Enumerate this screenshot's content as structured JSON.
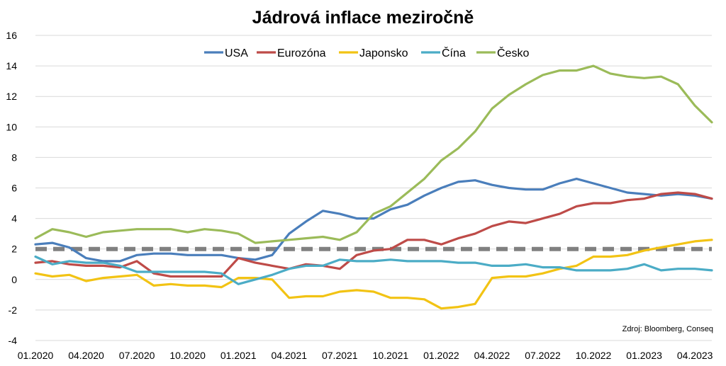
{
  "chart_data": {
    "type": "line",
    "title": "Jádrová inflace meziročně",
    "source": "Zdroj: Bloomberg, Conseq",
    "ylim": [
      -4,
      16
    ],
    "yticks": [
      -4,
      -2,
      0,
      2,
      4,
      6,
      8,
      10,
      12,
      14,
      16
    ],
    "grid": true,
    "legend_position": "top",
    "x_tick_labels": [
      "01.2020",
      "04.2020",
      "07.2020",
      "10.2020",
      "01.2021",
      "04.2021",
      "07.2021",
      "10.2021",
      "01.2022",
      "04.2022",
      "07.2022",
      "10.2022",
      "01.2023",
      "04.2023"
    ],
    "reference_line": {
      "value": 2,
      "style": "dashed",
      "color": "#808080"
    },
    "x": [
      "01.2020",
      "02.2020",
      "03.2020",
      "04.2020",
      "05.2020",
      "06.2020",
      "07.2020",
      "08.2020",
      "09.2020",
      "10.2020",
      "11.2020",
      "12.2020",
      "01.2021",
      "02.2021",
      "03.2021",
      "04.2021",
      "05.2021",
      "06.2021",
      "07.2021",
      "08.2021",
      "09.2021",
      "10.2021",
      "11.2021",
      "12.2021",
      "01.2022",
      "02.2022",
      "03.2022",
      "04.2022",
      "05.2022",
      "06.2022",
      "07.2022",
      "08.2022",
      "09.2022",
      "10.2022",
      "11.2022",
      "12.2022",
      "01.2023",
      "02.2023",
      "03.2023",
      "04.2023",
      "05.2023"
    ],
    "series": [
      {
        "name": "USA",
        "color": "#4a7ebb",
        "values": [
          2.3,
          2.4,
          2.1,
          1.4,
          1.2,
          1.2,
          1.6,
          1.7,
          1.7,
          1.6,
          1.6,
          1.6,
          1.4,
          1.3,
          1.6,
          3.0,
          3.8,
          4.5,
          4.3,
          4.0,
          4.0,
          4.6,
          4.9,
          5.5,
          6.0,
          6.4,
          6.5,
          6.2,
          6.0,
          5.9,
          5.9,
          6.3,
          6.6,
          6.3,
          6.0,
          5.7,
          5.6,
          5.5,
          5.6,
          5.5,
          5.3
        ]
      },
      {
        "name": "Eurozóna",
        "color": "#be4b48",
        "values": [
          1.1,
          1.2,
          1.0,
          0.9,
          0.9,
          0.8,
          1.2,
          0.4,
          0.2,
          0.2,
          0.2,
          0.2,
          1.4,
          1.1,
          0.9,
          0.7,
          1.0,
          0.9,
          0.7,
          1.6,
          1.9,
          2.0,
          2.6,
          2.6,
          2.3,
          2.7,
          3.0,
          3.5,
          3.8,
          3.7,
          4.0,
          4.3,
          4.8,
          5.0,
          5.0,
          5.2,
          5.3,
          5.6,
          5.7,
          5.6,
          5.3
        ]
      },
      {
        "name": "Japonsko",
        "color": "#f2c314",
        "values": [
          0.4,
          0.2,
          0.3,
          -0.1,
          0.1,
          0.2,
          0.3,
          -0.4,
          -0.3,
          -0.4,
          -0.4,
          -0.5,
          0.1,
          0.1,
          0.0,
          -1.2,
          -1.1,
          -1.1,
          -0.8,
          -0.7,
          -0.8,
          -1.2,
          -1.2,
          -1.3,
          -1.9,
          -1.8,
          -1.6,
          0.1,
          0.2,
          0.2,
          0.4,
          0.7,
          0.9,
          1.5,
          1.5,
          1.6,
          1.9,
          2.1,
          2.3,
          2.5,
          2.6
        ]
      },
      {
        "name": "Čína",
        "color": "#4bacc6",
        "values": [
          1.5,
          1.0,
          1.2,
          1.1,
          1.1,
          0.9,
          0.5,
          0.5,
          0.5,
          0.5,
          0.5,
          0.4,
          -0.3,
          0.0,
          0.3,
          0.7,
          0.9,
          0.9,
          1.3,
          1.2,
          1.2,
          1.3,
          1.2,
          1.2,
          1.2,
          1.1,
          1.1,
          0.9,
          0.9,
          1.0,
          0.8,
          0.8,
          0.6,
          0.6,
          0.6,
          0.7,
          1.0,
          0.6,
          0.7,
          0.7,
          0.6
        ]
      },
      {
        "name": "Česko",
        "color": "#9bbb59",
        "values": [
          2.7,
          3.3,
          3.1,
          2.8,
          3.1,
          3.2,
          3.3,
          3.3,
          3.3,
          3.1,
          3.3,
          3.2,
          3.0,
          2.4,
          2.5,
          2.6,
          2.7,
          2.8,
          2.6,
          3.1,
          4.3,
          4.8,
          5.7,
          6.6,
          7.8,
          8.6,
          9.7,
          11.2,
          12.1,
          12.8,
          13.4,
          13.7,
          13.7,
          14.0,
          13.5,
          13.3,
          13.2,
          13.3,
          12.8,
          11.4,
          10.3
        ]
      }
    ]
  }
}
